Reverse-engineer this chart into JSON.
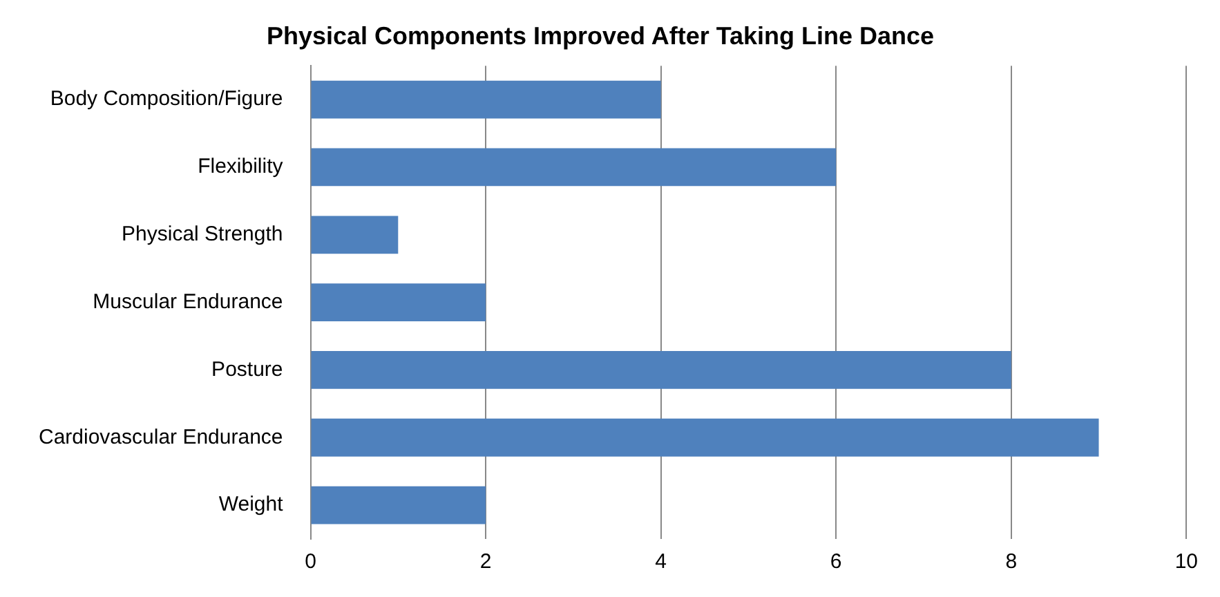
{
  "chart_data": {
    "type": "bar",
    "orientation": "horizontal",
    "title": "Physical Components Improved After Taking Line Dance",
    "categories": [
      "Body Composition/Figure",
      "Flexibility",
      "Physical Strength",
      "Muscular Endurance",
      "Posture",
      "Cardiovascular Endurance",
      "Weight"
    ],
    "values": [
      4,
      6,
      1,
      2,
      8,
      9,
      2
    ],
    "color": "#4f81bd",
    "xlim": [
      0,
      10
    ],
    "xticks": [
      0,
      2,
      4,
      6,
      8,
      10
    ],
    "grid": "x",
    "legend": false
  }
}
